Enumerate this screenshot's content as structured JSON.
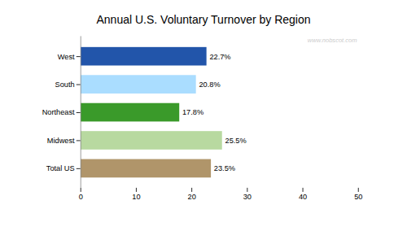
{
  "chart_data": {
    "type": "bar",
    "orientation": "horizontal",
    "title": "Annual U.S. Voluntary Turnover by Region",
    "categories": [
      "West",
      "South",
      "Northeast",
      "Midwest",
      "Total US"
    ],
    "values": [
      22.7,
      20.8,
      17.8,
      25.5,
      23.5
    ],
    "value_labels": [
      "22.7%",
      "20.8%",
      "17.8%",
      "25.5%",
      "23.5%"
    ],
    "colors": [
      "#2255aa",
      "#aaddff",
      "#3a9a2a",
      "#b8d9a0",
      "#b0956a"
    ],
    "xlim": [
      0,
      50
    ],
    "xticks": [
      0,
      10,
      20,
      30,
      40,
      50
    ],
    "annotations": [
      "www.nobscot.com"
    ],
    "data_labels": true,
    "grid": false
  }
}
